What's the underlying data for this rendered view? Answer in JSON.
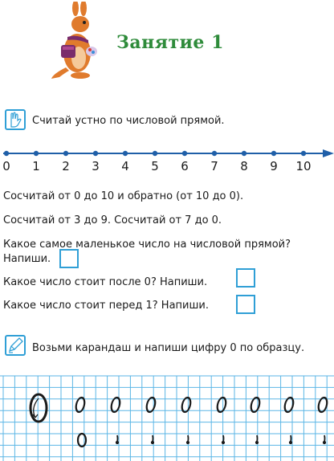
{
  "header": {
    "title": "Занятие  1"
  },
  "task1": {
    "icon": "hand-count-icon",
    "text": "Считай  устно  по  числовой  прямой."
  },
  "number_line": {
    "labels": [
      "0",
      "1",
      "2",
      "3",
      "4",
      "5",
      "6",
      "7",
      "8",
      "9",
      "10"
    ]
  },
  "questions": {
    "q1": "Сосчитай  от  0  до  10  и  обратно  (от  10  до  0).",
    "q2": "Сосчитай  от  3  до  9.  Сосчитай  от  7  до  0.",
    "q3_line1": "Какое  самое  маленькое  число  на  числовой  прямой?",
    "q3_line2": "Напиши.",
    "q4": "Какое  число  стоит  после  0?  Напиши.",
    "q5": "Какое  число  стоит  перед  1?  Напиши."
  },
  "task2": {
    "icon": "pencil-icon",
    "text": "Возьми  карандаш  и  напиши  цифру  0  по  образцу."
  },
  "colors": {
    "accent_blue": "#2f9fd6",
    "title_green": "#2e8b3a",
    "line_blue": "#1f5fa8"
  }
}
